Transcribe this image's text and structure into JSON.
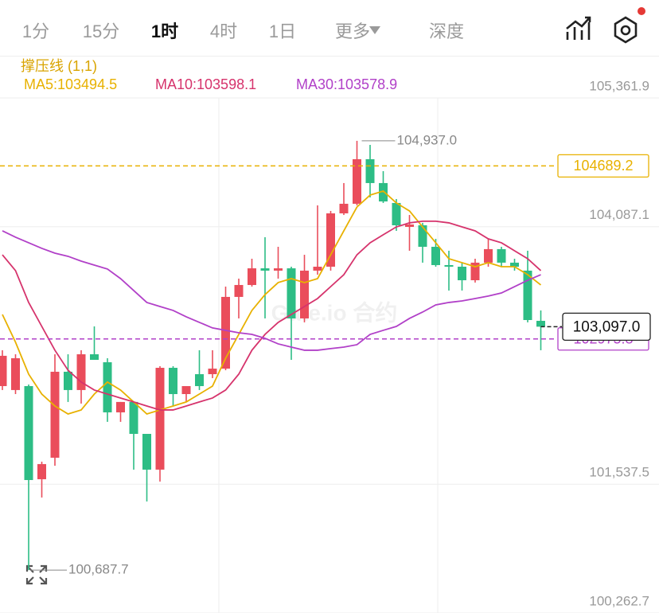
{
  "tabs": [
    "1分",
    "15分",
    "1时",
    "4时",
    "1日",
    "更多",
    "深度"
  ],
  "active_tab": 2,
  "chart_data": {
    "type": "candlestick",
    "indicator": "撑压线 (1,1)",
    "watermark": "Gate.io 合约",
    "up_color": "#ea4d5b",
    "down_color": "#2dbd85",
    "ylim": [
      100262.7,
      105361.9
    ],
    "yticks": [
      {
        "value": 105361.9,
        "label": "105,361.9"
      },
      {
        "value": 104087.1,
        "label": "104,087.1"
      },
      {
        "value": 101537.5,
        "label": "101,537.5"
      },
      {
        "value": 100262.7,
        "label": "100,262.7"
      }
    ],
    "grid": true,
    "open": [
      102509,
      102470,
      102509,
      101587,
      101800,
      102651,
      102470,
      102824,
      102745,
      102249,
      102352,
      102036,
      101682,
      102690,
      102430,
      102627,
      102627,
      102682,
      103392,
      103510,
      103675,
      103652,
      103675,
      103179,
      103652,
      103691,
      104219,
      104314,
      104755,
      104519,
      104322,
      104085,
      104101,
      103888,
      103707,
      103691,
      103557,
      103731,
      103865,
      103731,
      103652,
      103155
    ],
    "high": [
      102864,
      102824,
      102525,
      101761,
      102824,
      102824,
      102864,
      103100,
      102785,
      102352,
      102352,
      102036,
      102706,
      102706,
      102509,
      102864,
      102864,
      103494,
      103573,
      103770,
      103983,
      103888,
      103691,
      103809,
      104298,
      104243,
      104519,
      104937,
      104897,
      104637,
      104361,
      104203,
      104125,
      103967,
      103849,
      103731,
      103770,
      103967,
      103888,
      103770,
      103849,
      103258
    ],
    "low": [
      102470,
      102430,
      100687.7,
      101406,
      101721,
      102352,
      102336,
      102769,
      102155,
      102155,
      101682,
      101367,
      101564,
      102312,
      102352,
      102470,
      102588,
      102666,
      103179,
      103494,
      103179,
      103573,
      102769,
      103140,
      103612,
      103652,
      104203,
      104298,
      104377,
      104322,
      104046,
      103849,
      103731,
      103691,
      103455,
      103455,
      103534,
      103691,
      103691,
      103652,
      103140,
      102864
    ],
    "close": [
      102809,
      102785,
      101579,
      101737,
      102651,
      102470,
      102824,
      102769,
      102249,
      102352,
      102036,
      101682,
      102690,
      102430,
      102509,
      102509,
      102682,
      103392,
      103510,
      103675,
      103652,
      103675,
      103179,
      103652,
      103691,
      104219,
      104314,
      104755,
      104519,
      104337,
      104101,
      104109,
      103888,
      103707,
      103691,
      103557,
      103731,
      103865,
      103731,
      103691,
      103163,
      103097
    ],
    "ma": [
      {
        "name": "MA5:103494.5",
        "color": "#e8b100",
        "values": [
          103218,
          102943,
          102627,
          102430,
          102312,
          102233,
          102273,
          102430,
          102549,
          102470,
          102352,
          102233,
          102273,
          102312,
          102352,
          102430,
          102509,
          102785,
          103021,
          103258,
          103415,
          103534,
          103573,
          103534,
          103573,
          103809,
          104046,
          104282,
          104400,
          104440,
          104322,
          104243,
          104085,
          103928,
          103770,
          103731,
          103691,
          103731,
          103691,
          103691,
          103612,
          103510
        ]
      },
      {
        "name": "MA10:103598.1",
        "color": "#d6336c",
        "values": [
          103809,
          103652,
          103337,
          103100,
          102864,
          102666,
          102549,
          102470,
          102430,
          102391,
          102352,
          102312,
          102273,
          102273,
          102312,
          102352,
          102391,
          102470,
          102627,
          102864,
          103021,
          103140,
          103218,
          103297,
          103376,
          103494,
          103612,
          103809,
          103928,
          104007,
          104085,
          104125,
          104141,
          104141,
          104125,
          104085,
          104046,
          103967,
          103928,
          103849,
          103770,
          103652
        ]
      },
      {
        "name": "MA30:103578.9",
        "color": "#b140c8",
        "values": [
          104046,
          103983,
          103928,
          103873,
          103825,
          103794,
          103746,
          103707,
          103668,
          103573,
          103455,
          103337,
          103297,
          103258,
          103195,
          103140,
          103085,
          103061,
          103037,
          103021,
          102982,
          102927,
          102895,
          102864,
          102864,
          102880,
          102895,
          102919,
          103021,
          103061,
          103100,
          103179,
          103242,
          103313,
          103337,
          103352,
          103376,
          103400,
          103431,
          103494,
          103557,
          103612
        ]
      }
    ],
    "high_marker": {
      "value": 104937,
      "label": "104,937.0"
    },
    "low_marker": {
      "value": 100687.7,
      "label": "100,687.7"
    },
    "resistance": 104689.2,
    "support": 102975.8,
    "last_price": {
      "value": 103097,
      "label": "103,097.0"
    }
  }
}
